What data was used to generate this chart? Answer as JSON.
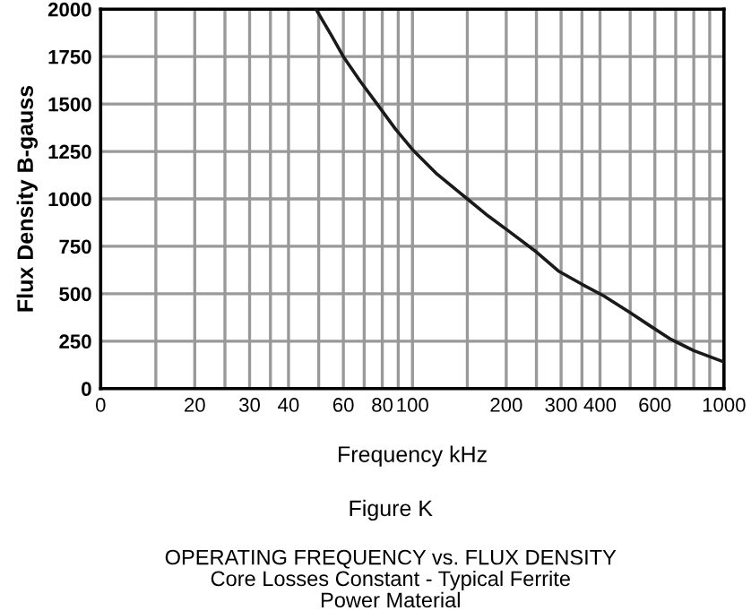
{
  "chart_data": {
    "type": "line",
    "xlabel": "Frequency kHz",
    "ylabel": "Flux Density B-gauss",
    "annotations": [
      "Figure K",
      "OPERATING FREQUENCY vs. FLUX DENSITY",
      "Core Losses Constant - Typical Ferrite",
      "Power Material"
    ],
    "x": [
      49,
      55,
      60,
      68,
      77,
      88,
      100,
      120,
      150,
      175,
      200,
      250,
      294,
      350,
      410,
      500,
      580,
      675,
      800,
      1000
    ],
    "series": [
      {
        "color": "#1a1a1a",
        "values": [
          2000,
          1860,
          1750,
          1620,
          1500,
          1370,
          1260,
          1130,
          1000,
          910,
          840,
          720,
          620,
          550,
          490,
          400,
          330,
          260,
          200,
          140
        ]
      }
    ],
    "log": "x",
    "xlim": [
      0,
      1000
    ],
    "ylim": [
      0,
      2000
    ],
    "xticks": [
      0,
      {
        "value": 15,
        "label": null
      },
      20,
      {
        "value": 25,
        "label": null
      },
      30,
      {
        "value": 35,
        "label": null
      },
      40,
      {
        "value": 50,
        "label": null
      },
      60,
      {
        "value": 70,
        "label": null
      },
      80,
      {
        "value": 90,
        "label": null
      },
      100,
      {
        "value": 150,
        "label": null
      },
      200,
      {
        "value": 250,
        "label": null
      },
      300,
      {
        "value": 350,
        "label": null
      },
      400,
      {
        "value": 500,
        "label": null
      },
      600,
      {
        "value": 700,
        "label": null
      },
      {
        "value": 800,
        "label": null
      },
      {
        "value": 900,
        "label": null
      },
      1000
    ],
    "yticks": [
      0,
      250,
      500,
      750,
      1000,
      1250,
      1500,
      1750,
      2000
    ],
    "grid": true,
    "marker": "none",
    "line_style": "solid"
  }
}
